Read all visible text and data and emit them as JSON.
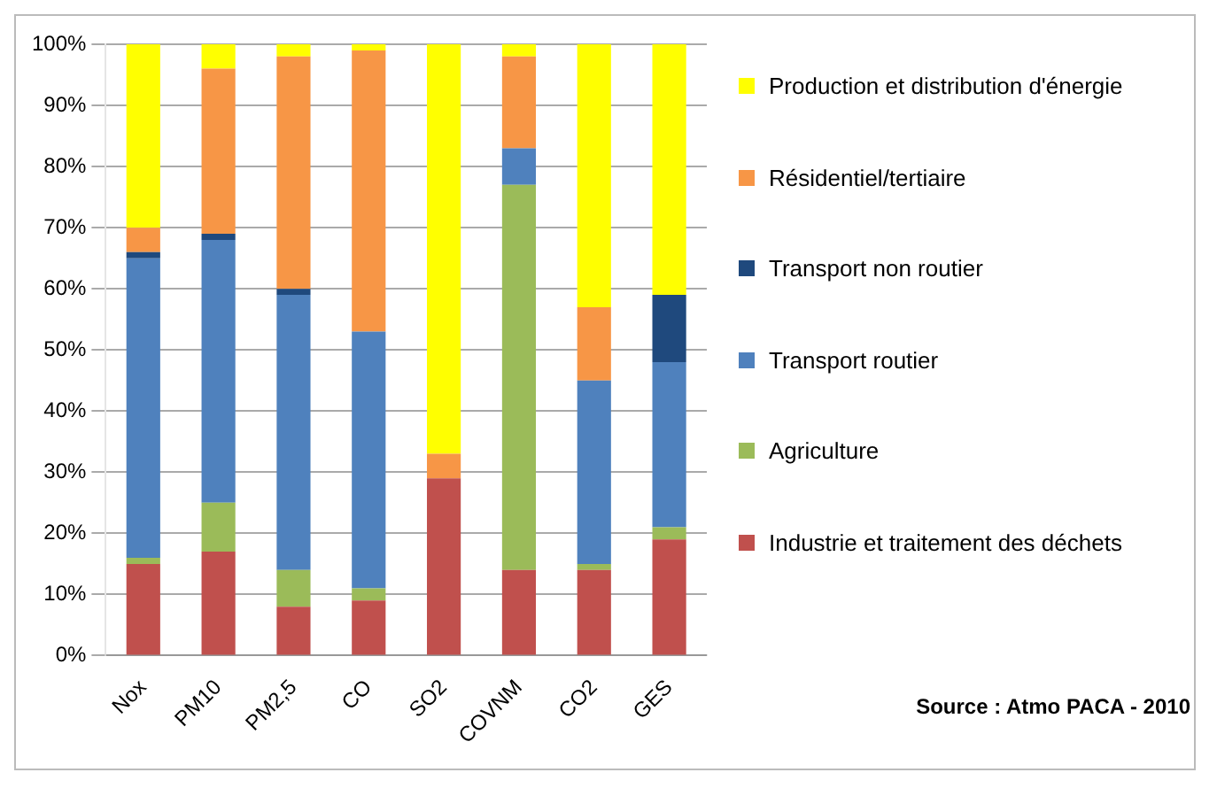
{
  "chart_data": {
    "type": "bar",
    "stacked": true,
    "categories": [
      "Nox",
      "PM10",
      "PM2,5",
      "CO",
      "SO2",
      "COVNM",
      "CO2",
      "GES"
    ],
    "series": [
      {
        "name": "Industrie et traitement des déchets",
        "color": "#c0504d",
        "values": [
          15,
          17,
          8,
          9,
          29,
          14,
          14,
          19
        ]
      },
      {
        "name": "Agriculture",
        "color": "#9bbb59",
        "values": [
          1,
          8,
          6,
          2,
          0,
          63,
          1,
          2
        ]
      },
      {
        "name": "Transport routier",
        "color": "#4f81bd",
        "values": [
          49,
          43,
          45,
          42,
          0,
          6,
          30,
          27
        ]
      },
      {
        "name": "Transport non routier",
        "color": "#1f497d",
        "values": [
          1,
          1,
          1,
          0,
          0,
          0,
          0,
          11
        ]
      },
      {
        "name": "Résidentiel/tertiaire",
        "color": "#f79646",
        "values": [
          4,
          27,
          38,
          46,
          4,
          15,
          12,
          0
        ]
      },
      {
        "name": "Production et distribution d'énergie",
        "color": "#ffff00",
        "values": [
          30,
          4,
          2,
          1,
          67,
          2,
          43,
          41
        ]
      }
    ],
    "ylim": [
      0,
      100
    ],
    "yticks": [
      {
        "value": 0,
        "label": "0%"
      },
      {
        "value": 10,
        "label": "10%"
      },
      {
        "value": 20,
        "label": "20%"
      },
      {
        "value": 30,
        "label": "30%"
      },
      {
        "value": 40,
        "label": "40%"
      },
      {
        "value": 50,
        "label": "50%"
      },
      {
        "value": 60,
        "label": "60%"
      },
      {
        "value": 70,
        "label": "70%"
      },
      {
        "value": 80,
        "label": "80%"
      },
      {
        "value": 90,
        "label": "90%"
      },
      {
        "value": 100,
        "label": "100%"
      }
    ],
    "grid": "y",
    "legend": "right",
    "annotations": [
      "Source : Atmo PACA - 2010"
    ]
  }
}
